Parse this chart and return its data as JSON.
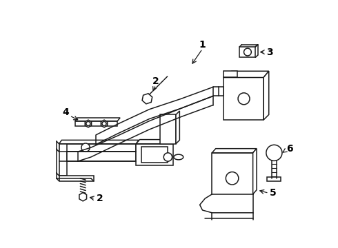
{
  "bg_color": "#ffffff",
  "line_color": "#1a1a1a",
  "lw": 1.1,
  "fig_width": 4.9,
  "fig_height": 3.6,
  "dpi": 100
}
